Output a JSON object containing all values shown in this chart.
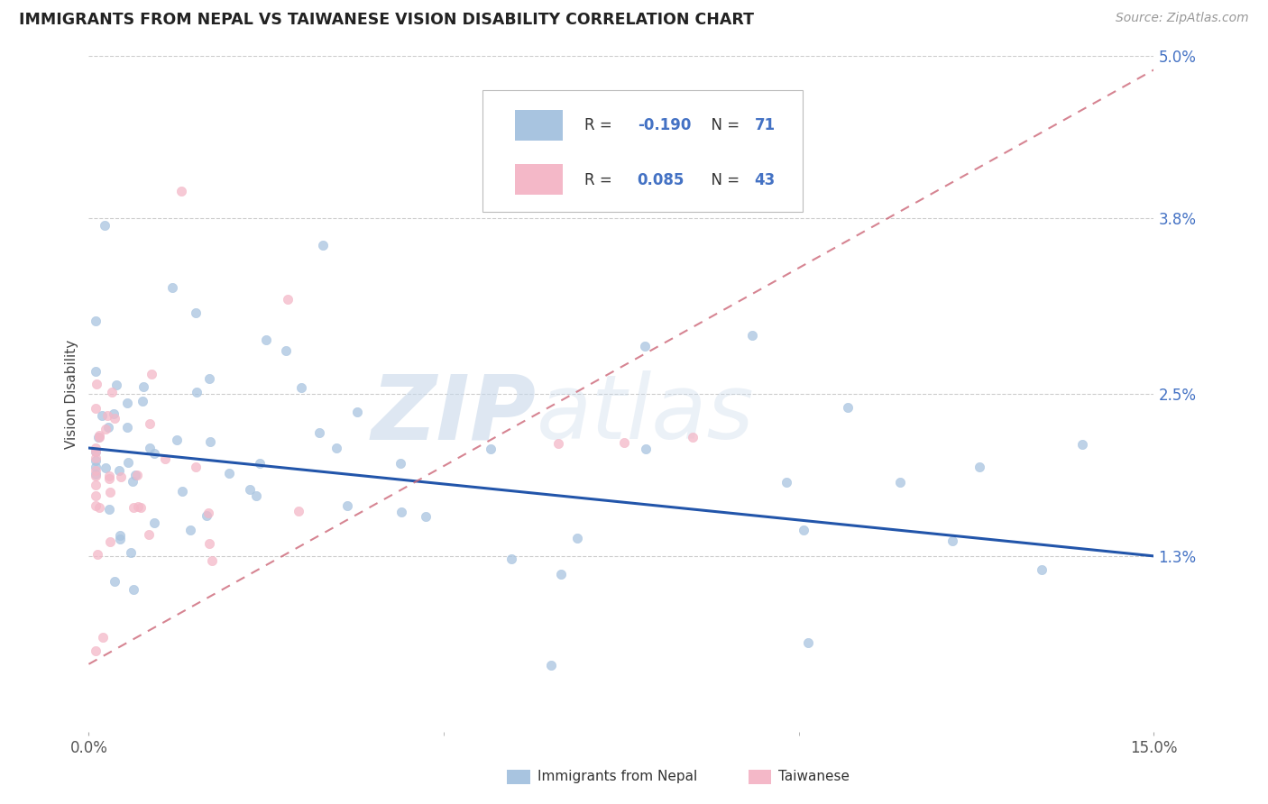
{
  "title": "IMMIGRANTS FROM NEPAL VS TAIWANESE VISION DISABILITY CORRELATION CHART",
  "source": "Source: ZipAtlas.com",
  "ylabel": "Vision Disability",
  "legend_label_1": "Immigrants from Nepal",
  "legend_label_2": "Taiwanese",
  "R1": -0.19,
  "N1": 71,
  "R2": 0.085,
  "N2": 43,
  "color1": "#a8c4e0",
  "color2": "#f4b8c8",
  "line1_color": "#2255aa",
  "line2_color": "#cc6677",
  "xlim": [
    0.0,
    0.15
  ],
  "ylim": [
    0.0,
    0.05
  ],
  "ytick_vals": [
    0.013,
    0.025,
    0.038,
    0.05
  ],
  "ytick_labels": [
    "1.3%",
    "2.5%",
    "3.8%",
    "5.0%"
  ],
  "xtick_vals": [
    0.0,
    0.15
  ],
  "xtick_labels": [
    "0.0%",
    "15.0%"
  ],
  "watermark_zip": "ZIP",
  "watermark_atlas": "atlas",
  "background_color": "#ffffff",
  "grid_color": "#cccccc",
  "blue_line_x0": 0.0,
  "blue_line_y0": 0.021,
  "blue_line_x1": 0.15,
  "blue_line_y1": 0.013,
  "pink_line_x0": 0.0,
  "pink_line_y0": 0.005,
  "pink_line_x1": 0.15,
  "pink_line_y1": 0.049
}
